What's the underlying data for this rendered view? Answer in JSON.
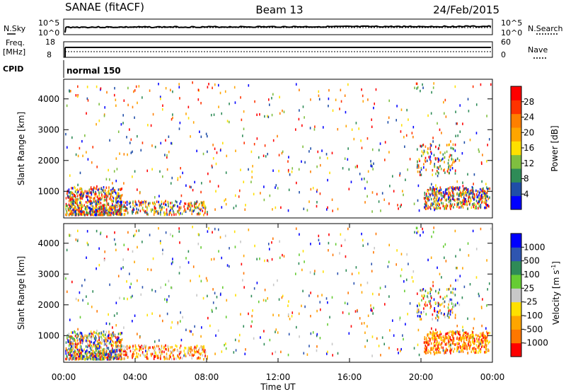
{
  "header": {
    "title_left": "SANAE (fitACF)",
    "title_center": "Beam 13",
    "title_right": "24/Feb/2015"
  },
  "params": {
    "nsky_label": "N.Sky",
    "nsearch_label": "N.Search",
    "noise_ticks_left": [
      "10^5",
      "10^0"
    ],
    "noise_ticks_right": [
      "10^5",
      "10^0"
    ],
    "freq_label": "Freq.",
    "freq_unit": "[MHz]",
    "freq_ticks": [
      "18",
      "8"
    ],
    "nave_label": "Nave",
    "nave_ticks": [
      "60",
      "0"
    ],
    "cpid_label": "CPID",
    "cpid_value": "normal 150"
  },
  "colors": {
    "power_scale": [
      "#0000ff",
      "#1f4ea8",
      "#2e8b57",
      "#7fbf3f",
      "#ffe000",
      "#ffa500",
      "#ff7f00",
      "#ff3300",
      "#ff0000"
    ],
    "velocity_scale": [
      "#0000ff",
      "#2e55b0",
      "#2e8b57",
      "#66cc33",
      "#c8c8c8",
      "#ffe000",
      "#ffa500",
      "#ff7700",
      "#ff0000"
    ]
  },
  "chart_data": [
    {
      "type": "heatmap",
      "name": "power-panel",
      "ylabel": "Slant Range [km]",
      "yticks": [
        "1000",
        "2000",
        "3000",
        "4000"
      ],
      "ylim": [
        180,
        4500
      ],
      "xlim": [
        "00:00",
        "24:00"
      ],
      "colorbar_label": "Power [dB]",
      "colorbar_ticks": [
        "28",
        "24",
        "20",
        "16",
        "12",
        "8",
        "4"
      ],
      "colorbar_range": [
        0,
        30
      ]
    },
    {
      "type": "heatmap",
      "name": "velocity-panel",
      "ylabel": "Slant Range [km]",
      "yticks": [
        "1000",
        "2000",
        "3000",
        "4000"
      ],
      "ylim": [
        180,
        4500
      ],
      "xlim": [
        "00:00",
        "24:00"
      ],
      "xticks": [
        "00:00",
        "04:00",
        "08:00",
        "12:00",
        "16:00",
        "20:00",
        "00:00"
      ],
      "xlabel": "Time UT",
      "colorbar_label": "Velocity [m s",
      "colorbar_label_sup": "-1",
      "colorbar_label_end": "]",
      "colorbar_ticks": [
        "1000",
        "500",
        "100",
        "25",
        "-25",
        "-100",
        "-500",
        "-1000"
      ]
    }
  ]
}
